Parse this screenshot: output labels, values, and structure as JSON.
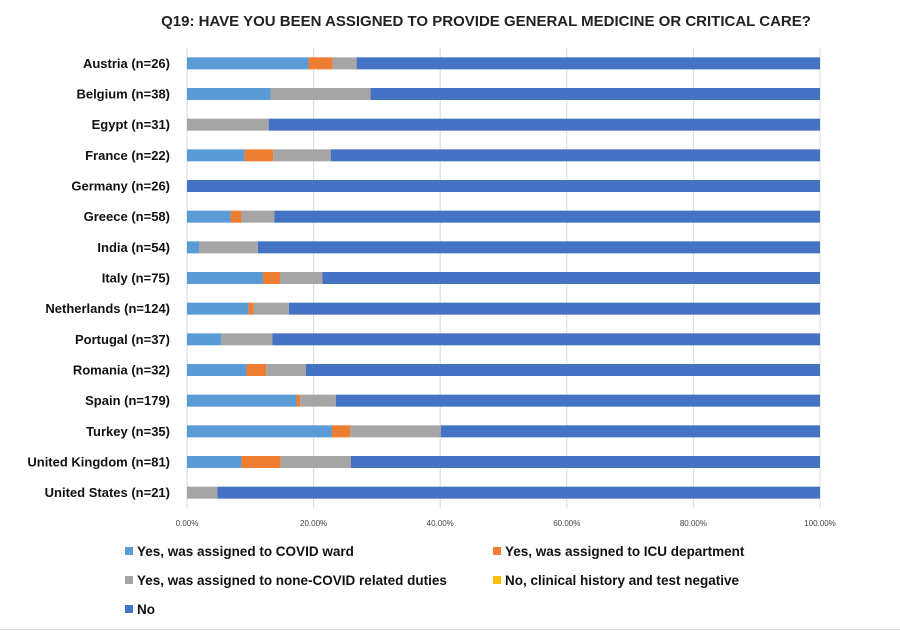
{
  "chart_data": {
    "type": "bar",
    "orientation": "horizontal",
    "stacked": true,
    "title": "Q19: HAVE YOU BEEN ASSIGNED TO PROVIDE GENERAL MEDICINE OR CRITICAL CARE?",
    "xlabel": "",
    "ylabel": "",
    "xlim": [
      0,
      100
    ],
    "x_ticks": [
      "0.00%",
      "20.00%",
      "40.00%",
      "60.00%",
      "80.00%",
      "100.00%"
    ],
    "x_tick_values": [
      0,
      20,
      40,
      60,
      80,
      100
    ],
    "grid": true,
    "legend_position": "bottom",
    "categories": [
      "Austria (n=26)",
      "Belgium (n=38)",
      "Egypt (n=31)",
      "France (n=22)",
      "Germany (n=26)",
      "Greece (n=58)",
      "India (n=54)",
      "Italy (n=75)",
      "Netherlands (n=124)",
      "Portugal (n=37)",
      "Romania (n=32)",
      "Spain (n=179)",
      "Turkey (n=35)",
      "United Kingdom (n=81)",
      "United States (n=21)"
    ],
    "series": [
      {
        "name": "Yes, was assigned to COVID ward",
        "color": "#5b9bd5",
        "values": [
          19.2,
          13.2,
          0,
          9.1,
          0,
          6.9,
          1.9,
          12.0,
          9.7,
          5.4,
          9.4,
          17.3,
          22.9,
          8.6,
          0
        ]
      },
      {
        "name": "Yes, was assigned to ICU department",
        "color": "#ed7d31",
        "values": [
          3.8,
          0,
          0,
          4.5,
          0,
          1.7,
          0,
          2.7,
          0.8,
          0,
          3.1,
          0.6,
          2.9,
          6.2,
          0
        ]
      },
      {
        "name": "Yes, was assigned to none-COVID related duties",
        "color": "#a5a5a5",
        "values": [
          3.8,
          15.8,
          12.9,
          9.1,
          0,
          5.2,
          9.3,
          6.7,
          5.6,
          8.1,
          6.3,
          5.6,
          14.3,
          11.1,
          4.8
        ]
      },
      {
        "name": "No, clinical history and test negative",
        "color": "#ffc000",
        "values": [
          0,
          0,
          0,
          0,
          0,
          0,
          0,
          0,
          0,
          0,
          0,
          0,
          0,
          0,
          0
        ]
      },
      {
        "name": "No",
        "color": "#4472c4",
        "values": [
          73.2,
          71.0,
          87.1,
          77.3,
          100,
          86.2,
          88.8,
          78.6,
          83.9,
          86.5,
          81.2,
          76.5,
          59.9,
          74.1,
          95.2
        ]
      }
    ]
  }
}
